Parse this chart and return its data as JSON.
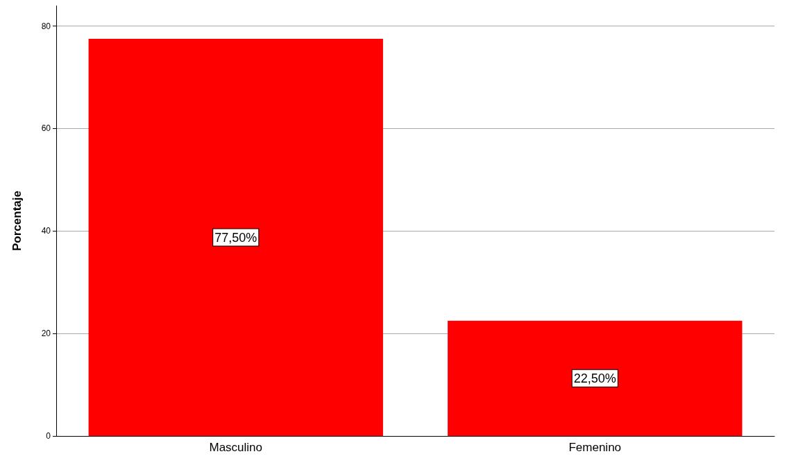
{
  "chart_data": {
    "type": "bar",
    "ylabel": "Porcentaje",
    "categories": [
      "Masculino",
      "Femenino"
    ],
    "values": [
      77.5,
      22.5
    ],
    "color": "#ff0000",
    "value_labels": [
      "77,50%",
      "22,50%"
    ],
    "ylim": [
      0,
      84
    ],
    "yticks": [
      0,
      20,
      40,
      60,
      80
    ],
    "grid": "y"
  }
}
